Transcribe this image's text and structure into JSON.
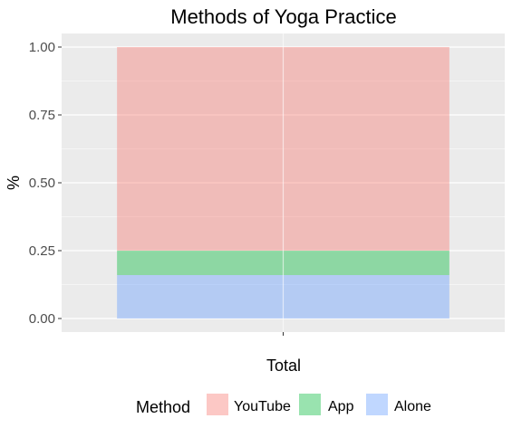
{
  "chart_data": {
    "type": "bar",
    "stacked": true,
    "title": "Methods of Yoga Practice",
    "xlabel": "Total",
    "ylabel": "%",
    "categories": [
      ""
    ],
    "ylim": [
      -0.05,
      1.05
    ],
    "yticks": [
      0,
      0.25,
      0.5,
      0.75,
      1
    ],
    "ytick_labels": [
      "0.00",
      "0.25",
      "0.50",
      "0.75",
      "1.00"
    ],
    "grid": true,
    "legend_position": "bottom",
    "legend_title": "Method",
    "series": [
      {
        "name": "YouTube",
        "values": [
          0.75
        ],
        "color": "#F8766D"
      },
      {
        "name": "App",
        "values": [
          0.09
        ],
        "color": "#00BA38"
      },
      {
        "name": "Alone",
        "values": [
          0.16
        ],
        "color": "#619CFF"
      }
    ],
    "stack_order_bottom_to_top": [
      "Alone",
      "App",
      "YouTube"
    ],
    "bar_opacity": 0.4,
    "panel_color": "#EBEBEB",
    "grid_color": "#FFFFFF"
  }
}
